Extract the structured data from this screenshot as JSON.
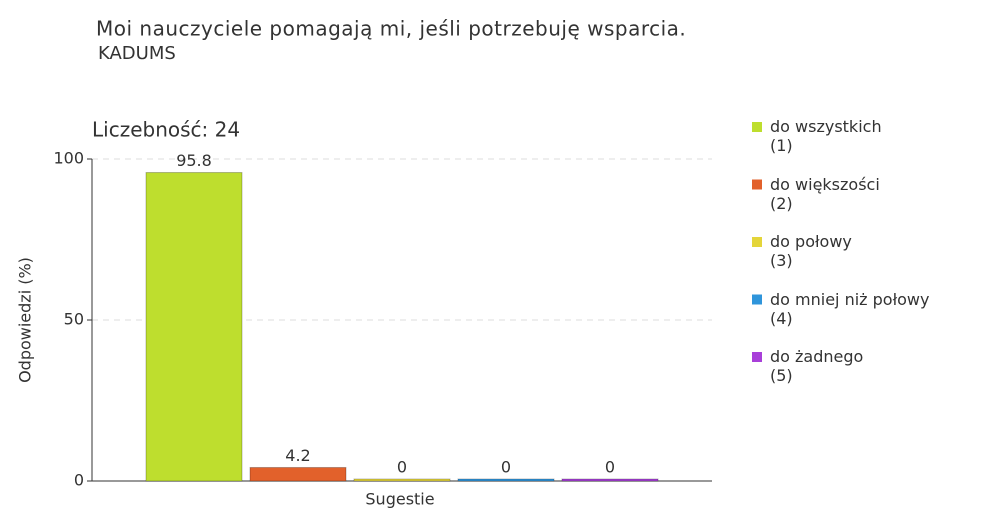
{
  "chart_data": {
    "type": "bar",
    "title": "Moi nauczyciele pomagają mi, jeśli potrzebuję wsparcia.",
    "subtitle": "KADUMS",
    "annotation": "Liczebność: 24",
    "y_label": "Odpowiedzi (%)",
    "x_label": "Sugestie",
    "categories": [
      "Sugestie"
    ],
    "series": [
      {
        "name": "do wszystkich\n(1)",
        "color": "#bede2e",
        "values": [
          95.8
        ]
      },
      {
        "name": "do większości\n(2)",
        "color": "#e2612b",
        "values": [
          4.2
        ]
      },
      {
        "name": "do połowy\n(3)",
        "color": "#e4d53a",
        "values": [
          0
        ]
      },
      {
        "name": "do mniej niż połowy\n(4)",
        "color": "#2f95db",
        "values": [
          0
        ]
      },
      {
        "name": "do żadnego\n(5)",
        "color": "#a83fd9",
        "values": [
          0
        ]
      }
    ],
    "ylim": [
      0,
      100
    ],
    "yticks": [
      0,
      50,
      100
    ],
    "grid": true,
    "legend": "right"
  }
}
